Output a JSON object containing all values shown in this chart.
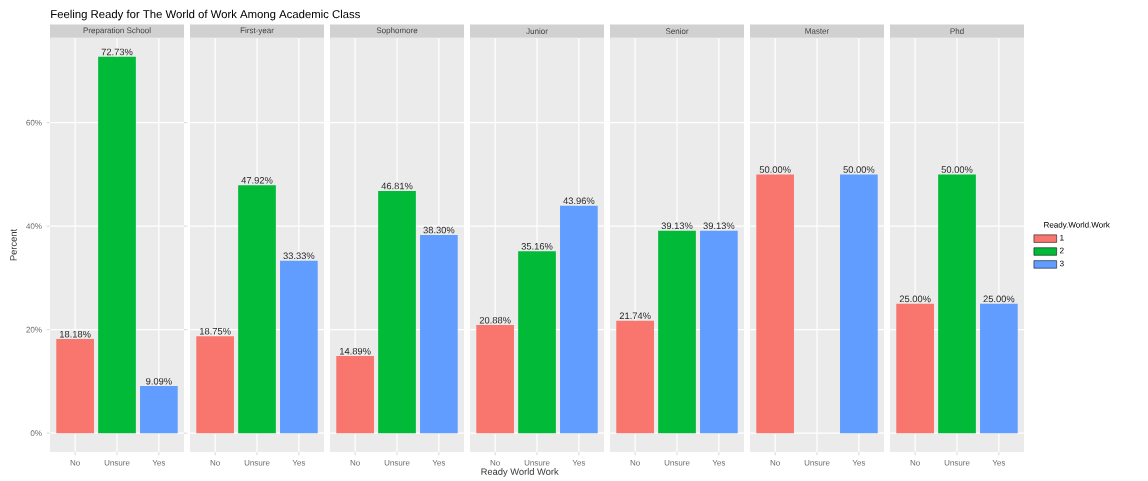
{
  "chart_data": [
    {
      "type": "bar",
      "title": "Feeling Ready for The World of Work Among Academic Class",
      "subtitle": "Preparation School",
      "ylabel": "Percent",
      "categories": [
        "No",
        "Unsure",
        "Yes"
      ],
      "ylim": [
        -3.64,
        76.37
      ],
      "yticks": [
        {
          "value": 0,
          "label": "0%"
        },
        {
          "value": 20,
          "label": "20%"
        },
        {
          "value": 40,
          "label": "40%"
        },
        {
          "value": 60,
          "label": "60%"
        }
      ],
      "grid": true,
      "series": [
        {
          "color": "#f8766d",
          "values": [
            18.18,
            null,
            null
          ],
          "value_labels": [
            "18.18%",
            null,
            null
          ]
        },
        {
          "color": "#00ba38",
          "values": [
            null,
            72.73,
            null
          ],
          "value_labels": [
            null,
            "72.73%",
            null
          ]
        },
        {
          "color": "#619cff",
          "values": [
            null,
            null,
            9.09
          ],
          "value_labels": [
            null,
            null,
            "9.09%"
          ]
        }
      ]
    },
    {
      "type": "bar",
      "subtitle": "First-year",
      "categories": [
        "No",
        "Unsure",
        "Yes"
      ],
      "ylim": [
        -3.64,
        76.37
      ],
      "yticks": [
        0,
        20,
        40,
        60
      ],
      "grid": true,
      "tick_labels": "x",
      "series": [
        {
          "color": "#f8766d",
          "values": [
            18.75,
            null,
            null
          ],
          "value_labels": [
            "18.75%",
            null,
            null
          ]
        },
        {
          "color": "#00ba38",
          "values": [
            null,
            47.92,
            null
          ],
          "value_labels": [
            null,
            "47.92%",
            null
          ]
        },
        {
          "color": "#619cff",
          "values": [
            null,
            null,
            33.33
          ],
          "value_labels": [
            null,
            null,
            "33.33%"
          ]
        }
      ]
    },
    {
      "type": "bar",
      "subtitle": "Sophomore",
      "categories": [
        "No",
        "Unsure",
        "Yes"
      ],
      "ylim": [
        -3.64,
        76.37
      ],
      "yticks": [
        0,
        20,
        40,
        60
      ],
      "grid": true,
      "tick_labels": "x",
      "series": [
        {
          "color": "#f8766d",
          "values": [
            14.89,
            null,
            null
          ],
          "value_labels": [
            "14.89%",
            null,
            null
          ]
        },
        {
          "color": "#00ba38",
          "values": [
            null,
            46.81,
            null
          ],
          "value_labels": [
            null,
            "46.81%",
            null
          ]
        },
        {
          "color": "#619cff",
          "values": [
            null,
            null,
            38.3
          ],
          "value_labels": [
            null,
            null,
            "38.30%"
          ]
        }
      ]
    },
    {
      "type": "bar",
      "subtitle": "Junior",
      "xlabel": "Ready World Work",
      "categories": [
        "No",
        "Unsure",
        "Yes"
      ],
      "ylim": [
        -3.64,
        76.37
      ],
      "yticks": [
        0,
        20,
        40,
        60
      ],
      "grid": true,
      "tick_labels": "x",
      "series": [
        {
          "color": "#f8766d",
          "values": [
            20.88,
            null,
            null
          ],
          "value_labels": [
            "20.88%",
            null,
            null
          ]
        },
        {
          "color": "#00ba38",
          "values": [
            null,
            35.16,
            null
          ],
          "value_labels": [
            null,
            "35.16%",
            null
          ]
        },
        {
          "color": "#619cff",
          "values": [
            null,
            null,
            43.96
          ],
          "value_labels": [
            null,
            null,
            "43.96%"
          ]
        }
      ]
    },
    {
      "type": "bar",
      "subtitle": "Senior",
      "categories": [
        "No",
        "Unsure",
        "Yes"
      ],
      "ylim": [
        -3.64,
        76.37
      ],
      "yticks": [
        0,
        20,
        40,
        60
      ],
      "grid": true,
      "tick_labels": "x",
      "series": [
        {
          "color": "#f8766d",
          "values": [
            21.74,
            null,
            null
          ],
          "value_labels": [
            "21.74%",
            null,
            null
          ]
        },
        {
          "color": "#00ba38",
          "values": [
            null,
            39.13,
            null
          ],
          "value_labels": [
            null,
            "39.13%",
            null
          ]
        },
        {
          "color": "#619cff",
          "values": [
            null,
            null,
            39.13
          ],
          "value_labels": [
            null,
            null,
            "39.13%"
          ]
        }
      ]
    },
    {
      "type": "bar",
      "subtitle": "Master",
      "categories": [
        "No",
        "Unsure",
        "Yes"
      ],
      "ylim": [
        -3.64,
        76.37
      ],
      "yticks": [
        0,
        20,
        40,
        60
      ],
      "grid": true,
      "tick_labels": "x",
      "series": [
        {
          "color": "#f8766d",
          "values": [
            50.0,
            null,
            null
          ],
          "value_labels": [
            "50.00%",
            null,
            null
          ]
        },
        {
          "color": "#619cff",
          "values": [
            null,
            null,
            50.0
          ],
          "value_labels": [
            null,
            null,
            "50.00%"
          ]
        }
      ]
    },
    {
      "type": "bar",
      "subtitle": "Phd",
      "legend_title": "Ready.World.Work",
      "legend": "right",
      "categories": [
        "No",
        "Unsure",
        "Yes"
      ],
      "ylim": [
        -3.64,
        76.37
      ],
      "yticks": [
        0,
        20,
        40,
        60
      ],
      "grid": true,
      "tick_labels": "x",
      "series": [
        {
          "name": "1",
          "color": "#f8766d",
          "values": [
            25.0,
            null,
            null
          ],
          "value_labels": [
            "25.00%",
            null,
            null
          ]
        },
        {
          "name": "2",
          "color": "#00ba38",
          "values": [
            null,
            50.0,
            null
          ],
          "value_labels": [
            null,
            "50.00%",
            null
          ]
        },
        {
          "name": "3",
          "color": "#619cff",
          "values": [
            null,
            null,
            25.0
          ],
          "value_labels": [
            null,
            null,
            "25.00%"
          ]
        }
      ]
    }
  ]
}
